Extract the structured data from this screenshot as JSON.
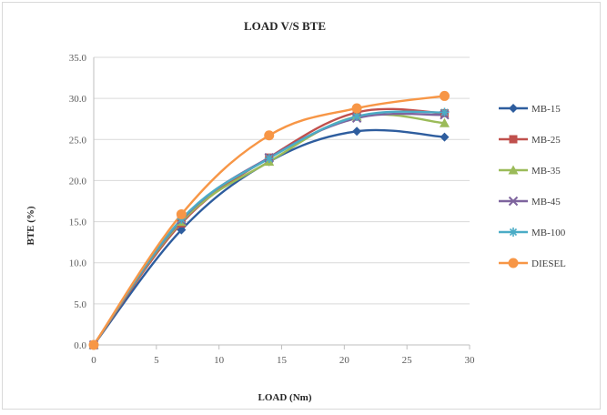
{
  "chart_data": {
    "type": "line",
    "title": "LOAD V/S BTE",
    "xlabel": "LOAD (Nm)",
    "ylabel": "BTE  (%)",
    "xlim": [
      0,
      30
    ],
    "ylim": [
      0,
      35
    ],
    "x_ticks": [
      "0",
      "5",
      "10",
      "15",
      "20",
      "25",
      "30"
    ],
    "y_ticks": [
      "0.0",
      "5.0",
      "10.0",
      "15.0",
      "20.0",
      "25.0",
      "30.0",
      "35.0"
    ],
    "grid": "horizontal",
    "legend_position": "right",
    "x": [
      0,
      7,
      14,
      21,
      28
    ],
    "series": [
      {
        "name": "MB-15",
        "color": "#2e5d9e",
        "marker": "diamond",
        "values": [
          0,
          14.0,
          22.3,
          26.0,
          25.3
        ]
      },
      {
        "name": "MB-25",
        "color": "#c0504d",
        "marker": "square",
        "values": [
          0,
          14.8,
          22.8,
          28.3,
          28.2
        ]
      },
      {
        "name": "MB-35",
        "color": "#9bbb59",
        "marker": "triangle",
        "values": [
          0,
          15.0,
          22.3,
          27.8,
          27.0
        ]
      },
      {
        "name": "MB-45",
        "color": "#7e649e",
        "marker": "cross",
        "values": [
          0,
          15.2,
          22.8,
          27.6,
          28.0
        ]
      },
      {
        "name": "MB-100",
        "color": "#4bacc6",
        "marker": "star",
        "values": [
          0,
          15.3,
          22.7,
          27.8,
          28.3
        ]
      },
      {
        "name": "DIESEL",
        "color": "#f79646",
        "marker": "circle",
        "values": [
          0,
          15.9,
          25.5,
          28.8,
          30.3
        ]
      }
    ]
  }
}
